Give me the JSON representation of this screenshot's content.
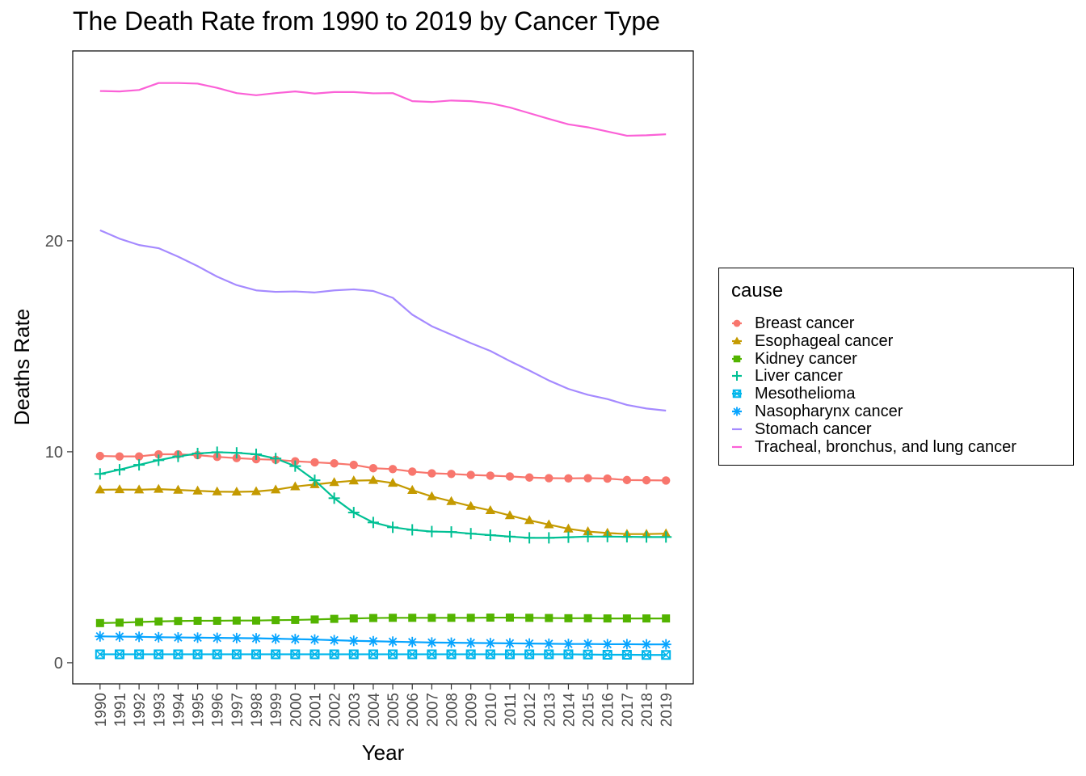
{
  "chart_data": {
    "type": "line",
    "title": "The Death Rate from 1990 to 2019 by Cancer Type",
    "xlabel": "Year",
    "ylabel": "Deaths Rate",
    "x": [
      1990,
      1991,
      1992,
      1993,
      1994,
      1995,
      1996,
      1997,
      1998,
      1999,
      2000,
      2001,
      2002,
      2003,
      2004,
      2005,
      2006,
      2007,
      2008,
      2009,
      2010,
      2011,
      2012,
      2013,
      2014,
      2015,
      2016,
      2017,
      2018,
      2019
    ],
    "x_tick_labels": [
      "1990",
      "1991",
      "1992",
      "1993",
      "1994",
      "1995",
      "1996",
      "1997",
      "1998",
      "1999",
      "2000",
      "2001",
      "2002",
      "2003",
      "2004",
      "2005",
      "2006",
      "2007",
      "2008",
      "2009",
      "2010",
      "2011",
      "2012",
      "2013",
      "2014",
      "2015",
      "2016",
      "2017",
      "2018",
      "2019"
    ],
    "y_ticks": [
      0,
      10,
      20
    ],
    "y_tick_labels": [
      "0",
      "10",
      "20"
    ],
    "ylim": [
      -1.0,
      29.0
    ],
    "xlim": [
      1988.6,
      2020.4
    ],
    "grid": false,
    "legend": {
      "title": "cause",
      "position": "right"
    },
    "series": [
      {
        "name": "Breast cancer",
        "color": "#F8766D",
        "shape": "circle",
        "values": [
          9.8,
          9.78,
          9.78,
          9.88,
          9.88,
          9.84,
          9.76,
          9.7,
          9.65,
          9.62,
          9.55,
          9.5,
          9.45,
          9.38,
          9.22,
          9.18,
          9.06,
          8.98,
          8.95,
          8.9,
          8.87,
          8.83,
          8.78,
          8.75,
          8.74,
          8.75,
          8.73,
          8.66,
          8.65,
          8.64
        ]
      },
      {
        "name": "Esophageal cancer",
        "color": "#C49A00",
        "shape": "triangle",
        "values": [
          8.2,
          8.21,
          8.2,
          8.23,
          8.19,
          8.15,
          8.11,
          8.1,
          8.12,
          8.2,
          8.35,
          8.45,
          8.55,
          8.63,
          8.65,
          8.52,
          8.18,
          7.88,
          7.65,
          7.42,
          7.22,
          6.98,
          6.75,
          6.55,
          6.35,
          6.22,
          6.15,
          6.1,
          6.1,
          6.12
        ]
      },
      {
        "name": "Kidney cancer",
        "color": "#53B400",
        "shape": "square",
        "values": [
          1.88,
          1.9,
          1.93,
          1.96,
          1.98,
          1.99,
          1.99,
          2.0,
          2.0,
          2.02,
          2.03,
          2.05,
          2.08,
          2.1,
          2.12,
          2.13,
          2.13,
          2.13,
          2.13,
          2.13,
          2.14,
          2.14,
          2.13,
          2.12,
          2.11,
          2.11,
          2.1,
          2.1,
          2.1,
          2.1
        ]
      },
      {
        "name": "Liver cancer",
        "color": "#00C094",
        "shape": "plus",
        "values": [
          8.95,
          9.15,
          9.38,
          9.6,
          9.78,
          9.92,
          9.98,
          9.95,
          9.88,
          9.68,
          9.32,
          8.65,
          7.8,
          7.12,
          6.65,
          6.42,
          6.3,
          6.22,
          6.2,
          6.12,
          6.05,
          5.98,
          5.92,
          5.92,
          5.95,
          5.98,
          5.98,
          5.97,
          5.96,
          5.96
        ]
      },
      {
        "name": "Mesothelioma",
        "color": "#00B6EB",
        "shape": "boxed-x",
        "values": [
          0.4,
          0.4,
          0.4,
          0.4,
          0.4,
          0.4,
          0.4,
          0.4,
          0.4,
          0.4,
          0.4,
          0.4,
          0.4,
          0.4,
          0.4,
          0.4,
          0.4,
          0.4,
          0.4,
          0.4,
          0.4,
          0.4,
          0.4,
          0.4,
          0.4,
          0.39,
          0.38,
          0.38,
          0.37,
          0.37
        ]
      },
      {
        "name": "Nasopharynx cancer",
        "color": "#06A4FF",
        "shape": "asterisk",
        "values": [
          1.25,
          1.24,
          1.23,
          1.21,
          1.2,
          1.19,
          1.18,
          1.17,
          1.16,
          1.14,
          1.12,
          1.1,
          1.07,
          1.04,
          1.02,
          1.0,
          0.98,
          0.96,
          0.95,
          0.94,
          0.93,
          0.92,
          0.91,
          0.9,
          0.89,
          0.89,
          0.88,
          0.88,
          0.87,
          0.87
        ]
      },
      {
        "name": "Stomach cancer",
        "color": "#A58AFF",
        "shape": "none",
        "values": [
          20.5,
          20.1,
          19.8,
          19.65,
          19.25,
          18.8,
          18.3,
          17.9,
          17.65,
          17.58,
          17.6,
          17.55,
          17.65,
          17.7,
          17.62,
          17.3,
          16.5,
          15.95,
          15.55,
          15.15,
          14.78,
          14.3,
          13.85,
          13.38,
          12.98,
          12.7,
          12.5,
          12.22,
          12.05,
          11.95
        ]
      },
      {
        "name": "Tracheal, bronchus, and lung cancer",
        "color": "#FB61D7",
        "shape": "none",
        "values": [
          27.1,
          27.08,
          27.15,
          27.48,
          27.48,
          27.45,
          27.25,
          27.0,
          26.9,
          27.0,
          27.08,
          26.98,
          27.05,
          27.05,
          26.99,
          27.0,
          26.62,
          26.58,
          26.65,
          26.62,
          26.52,
          26.32,
          26.05,
          25.78,
          25.52,
          25.38,
          25.18,
          24.98,
          25.0,
          25.05
        ]
      }
    ]
  }
}
